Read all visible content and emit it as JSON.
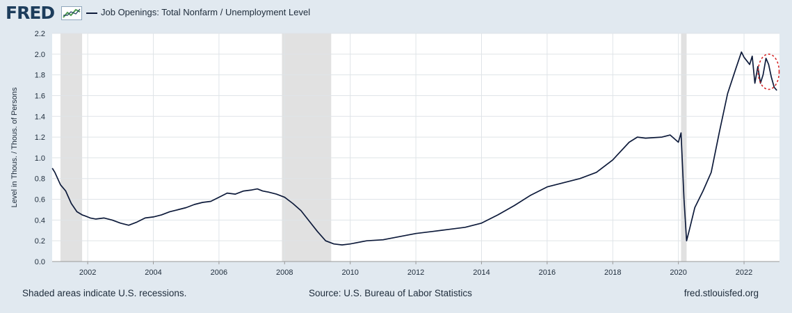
{
  "header": {
    "logo_text": "FRED",
    "logo_icon": "line-chart-icon",
    "legend_label": "Job Openings: Total Nonfarm / Unemployment Level"
  },
  "footer": {
    "left": "Shaded areas indicate U.S. recessions.",
    "center": "Source: U.S. Bureau of Labor Statistics",
    "right": "fred.stlouisfed.org"
  },
  "colors": {
    "background": "#e1e9f0",
    "plot_background": "#ffffff",
    "line": "#0d1a3a",
    "recession": "#e1e1e1",
    "grid": "#dfe4e8",
    "annotation": "#d62728"
  },
  "chart_data": {
    "type": "line",
    "title": "",
    "xlabel": "",
    "ylabel": "Level in Thous. / Thous. of Persons",
    "xlim": [
      2000.9167,
      2023.08
    ],
    "ylim": [
      0,
      2.2
    ],
    "yticks": [
      0.0,
      0.2,
      0.4,
      0.6,
      0.8,
      1.0,
      1.2,
      1.4,
      1.6,
      1.8,
      2.0,
      2.2
    ],
    "ytick_labels": [
      "0.0",
      "0.2",
      "0.4",
      "0.6",
      "0.8",
      "1.0",
      "1.2",
      "1.4",
      "1.6",
      "1.8",
      "2.0",
      "2.2"
    ],
    "xticks": [
      2002,
      2004,
      2006,
      2008,
      2010,
      2012,
      2014,
      2016,
      2018,
      2020,
      2022
    ],
    "xtick_labels": [
      "2002",
      "2004",
      "2006",
      "2008",
      "2010",
      "2012",
      "2014",
      "2016",
      "2018",
      "2020",
      "2022"
    ],
    "grid": true,
    "legend_position": "top-left",
    "recessions": [
      [
        2001.17,
        2001.83
      ],
      [
        2007.92,
        2009.42
      ],
      [
        2020.08,
        2020.25
      ]
    ],
    "annotation": {
      "type": "ellipse",
      "color": "#d62728",
      "x_center": 2022.75,
      "y_center": 1.83,
      "x_halfwidth": 0.32,
      "y_halfwidth": 0.17
    },
    "series": [
      {
        "x": [
          2000.92,
          2001.0,
          2001.17,
          2001.33,
          2001.5,
          2001.67,
          2001.83,
          2001.92,
          2002.08,
          2002.25,
          2002.5,
          2002.75,
          2003.0,
          2003.25,
          2003.5,
          2003.75,
          2004.0,
          2004.25,
          2004.5,
          2004.75,
          2005.0,
          2005.25,
          2005.5,
          2005.75,
          2006.0,
          2006.25,
          2006.5,
          2006.75,
          2007.0,
          2007.17,
          2007.33,
          2007.5,
          2007.75,
          2008.0,
          2008.25,
          2008.5,
          2008.75,
          2009.0,
          2009.25,
          2009.5,
          2009.75,
          2010.0,
          2010.5,
          2011.0,
          2011.5,
          2012.0,
          2012.5,
          2013.0,
          2013.5,
          2014.0,
          2014.5,
          2015.0,
          2015.5,
          2016.0,
          2016.5,
          2017.0,
          2017.5,
          2018.0,
          2018.5,
          2018.75,
          2019.0,
          2019.5,
          2019.75,
          2020.0,
          2020.08,
          2020.17,
          2020.25,
          2020.33,
          2020.5,
          2020.75,
          2021.0,
          2021.25,
          2021.5,
          2021.75,
          2021.92,
          2022.0,
          2022.17,
          2022.25,
          2022.33,
          2022.42,
          2022.5,
          2022.58,
          2022.67,
          2022.75,
          2022.83,
          2022.92,
          2023.0
        ],
        "values": [
          0.9,
          0.86,
          0.74,
          0.68,
          0.56,
          0.48,
          0.45,
          0.44,
          0.42,
          0.41,
          0.42,
          0.4,
          0.37,
          0.35,
          0.38,
          0.42,
          0.43,
          0.45,
          0.48,
          0.5,
          0.52,
          0.55,
          0.57,
          0.58,
          0.62,
          0.66,
          0.65,
          0.68,
          0.69,
          0.7,
          0.68,
          0.67,
          0.65,
          0.62,
          0.56,
          0.49,
          0.39,
          0.29,
          0.2,
          0.17,
          0.16,
          0.17,
          0.2,
          0.21,
          0.24,
          0.27,
          0.29,
          0.31,
          0.33,
          0.37,
          0.45,
          0.54,
          0.64,
          0.72,
          0.76,
          0.8,
          0.86,
          0.98,
          1.15,
          1.2,
          1.19,
          1.2,
          1.22,
          1.15,
          1.24,
          0.6,
          0.2,
          0.3,
          0.52,
          0.68,
          0.86,
          1.25,
          1.62,
          1.86,
          2.02,
          1.97,
          1.9,
          1.98,
          1.72,
          1.88,
          1.72,
          1.8,
          1.96,
          1.9,
          1.78,
          1.68,
          1.65
        ]
      }
    ]
  }
}
